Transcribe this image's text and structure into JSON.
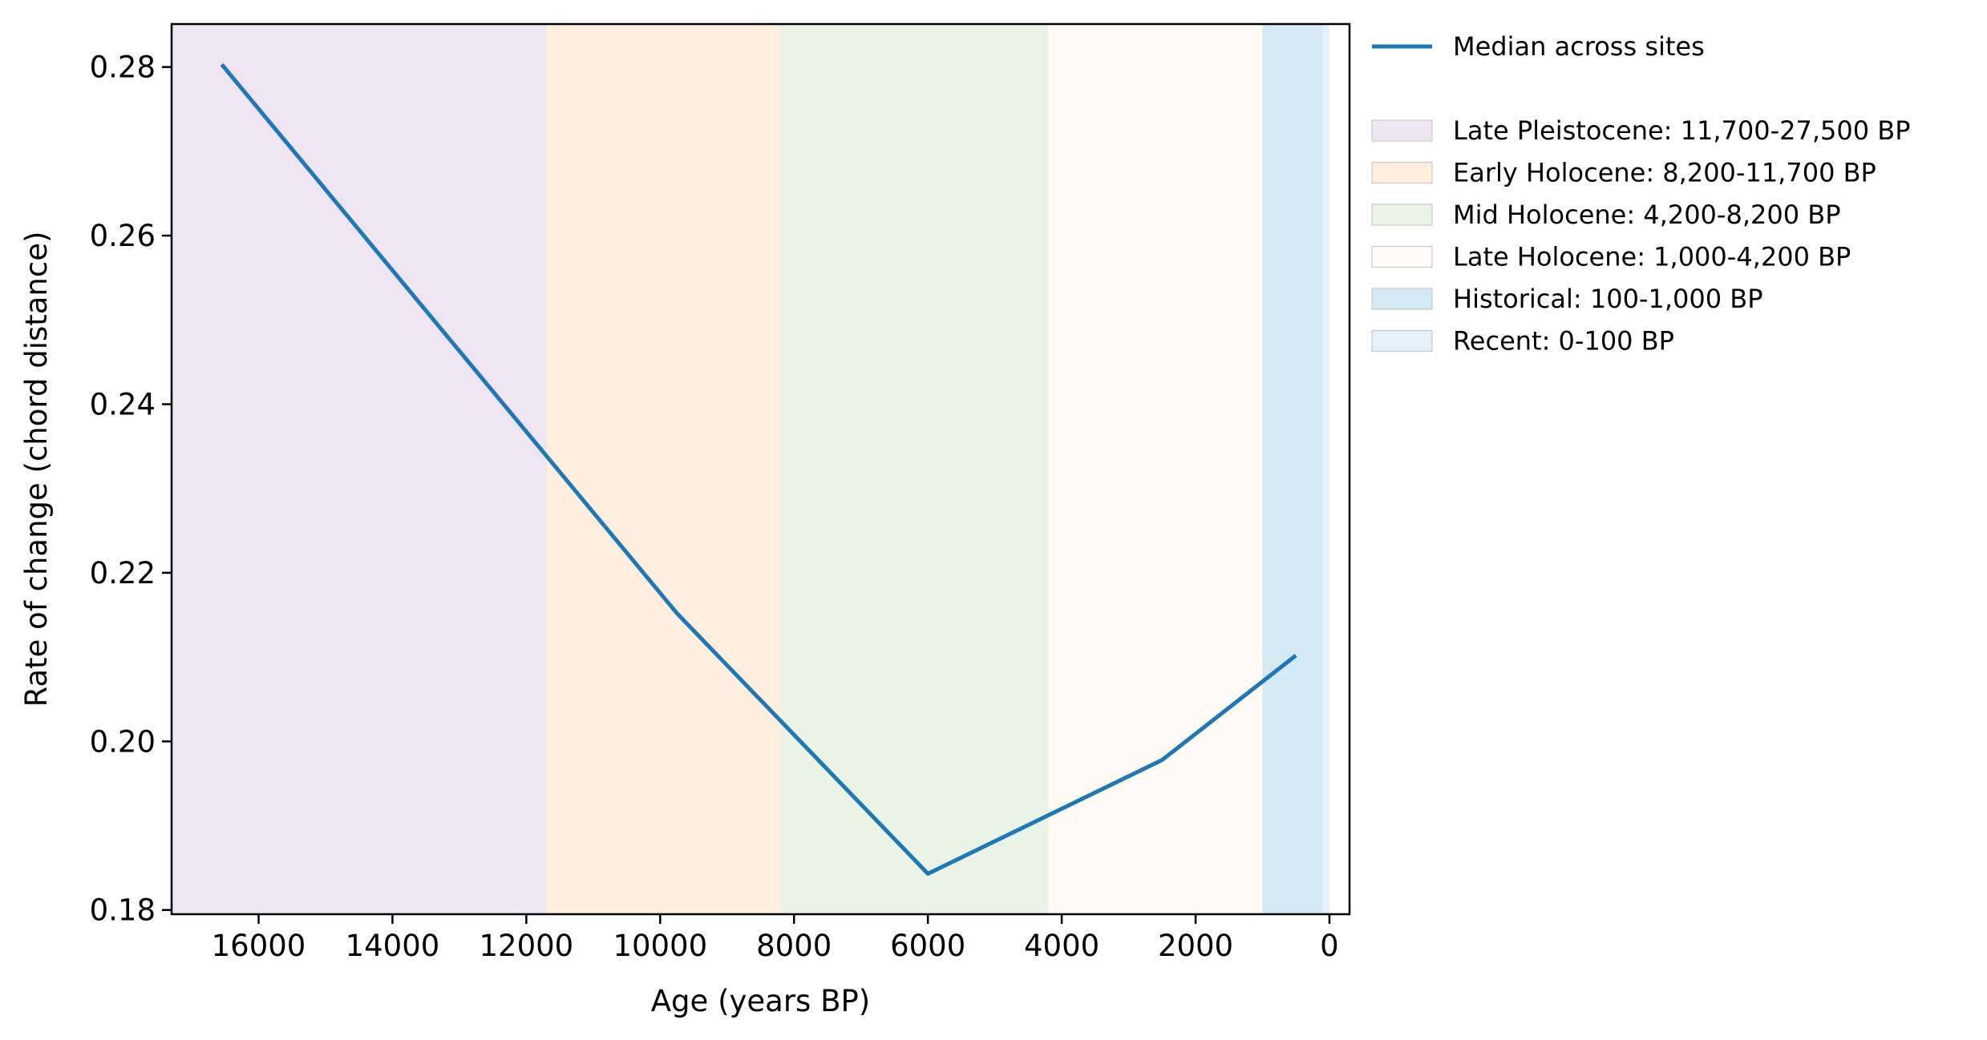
{
  "chart_data": {
    "type": "line",
    "xlabel": "Age (years BP)",
    "ylabel": "Rate of change (chord distance)",
    "xlim": [
      17300,
      -300
    ],
    "ylim": [
      0.1795,
      0.2851
    ],
    "x_reversed": true,
    "xticks": [
      16000,
      14000,
      12000,
      10000,
      8000,
      6000,
      4000,
      2000,
      0
    ],
    "xtick_labels": [
      "16000",
      "14000",
      "12000",
      "10000",
      "8000",
      "6000",
      "4000",
      "2000",
      "0"
    ],
    "yticks": [
      0.18,
      0.2,
      0.22,
      0.24,
      0.26,
      0.28
    ],
    "ytick_labels": [
      "0.18",
      "0.20",
      "0.22",
      "0.24",
      "0.26",
      "0.28"
    ],
    "series": [
      {
        "name": "Median across sites",
        "color": "#1f77b4",
        "x": [
          16550,
          9750,
          6000,
          2500,
          500
        ],
        "y": [
          0.2803,
          0.2152,
          0.1843,
          0.1978,
          0.2102
        ]
      }
    ],
    "bands": [
      {
        "label": "Late Pleistocene: 11,700-27,500 BP",
        "from": 27500,
        "to": 11700,
        "color": "#efe4f1"
      },
      {
        "label": "Early Holocene: 8,200-11,700 BP",
        "from": 11700,
        "to": 8200,
        "color": "#fdeedd"
      },
      {
        "label": "Mid Holocene: 4,200-8,200 BP",
        "from": 8200,
        "to": 4200,
        "color": "#e9f4e6"
      },
      {
        "label": "Late Holocene: 1,000-4,200 BP",
        "from": 4200,
        "to": 1000,
        "color": "#fffaf4"
      },
      {
        "label": "Historical: 100-1,000 BP",
        "from": 1000,
        "to": 100,
        "color": "#d3e9f4"
      },
      {
        "label": "Recent: 0-100 BP",
        "from": 100,
        "to": 0,
        "color": "#e5f1fa"
      }
    ],
    "grid": false,
    "legend_position": "outside-right"
  }
}
